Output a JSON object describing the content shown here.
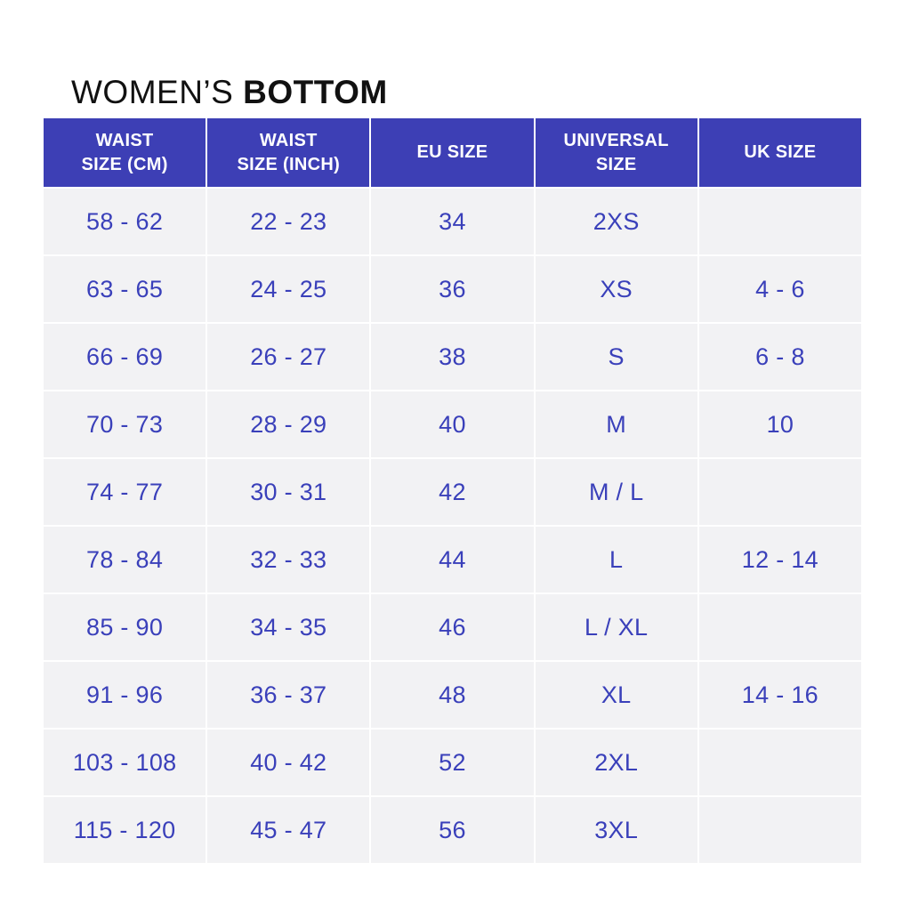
{
  "title": {
    "regular": "WOMEN’S ",
    "bold": "BOTTOM"
  },
  "colors": {
    "header_bg": "#3D3FB5",
    "header_text": "#FFFFFF",
    "cell_bg": "#F2F2F4",
    "cell_text": "#3A40BA",
    "title_text": "#111111",
    "page_bg": "#FFFFFF"
  },
  "table": {
    "headers": [
      "WAIST\nSIZE (CM)",
      "WAIST\nSIZE (INCH)",
      "EU SIZE",
      "UNIVERSAL\nSIZE",
      "UK SIZE"
    ],
    "rows": [
      {
        "cells": [
          "58 - 62",
          "22 - 23",
          "34",
          "2XS",
          ""
        ]
      },
      {
        "cells": [
          "63 - 65",
          "24 - 25",
          "36",
          "XS",
          "4 - 6"
        ]
      },
      {
        "cells": [
          "66 - 69",
          "26 - 27",
          "38",
          "S",
          "6 - 8"
        ]
      },
      {
        "cells": [
          "70 - 73",
          "28 - 29",
          "40",
          "M",
          "10"
        ]
      },
      {
        "cells": [
          "74 - 77",
          "30 - 31",
          "42",
          "M / L",
          ""
        ]
      },
      {
        "cells": [
          "78 - 84",
          "32 - 33",
          "44",
          "L",
          "12 - 14"
        ]
      },
      {
        "cells": [
          "85 - 90",
          "34 - 35",
          "46",
          "L / XL",
          ""
        ]
      },
      {
        "cells": [
          "91 - 96",
          "36 - 37",
          "48",
          "XL",
          "14 - 16"
        ]
      },
      {
        "cells": [
          "103 - 108",
          "40 - 42",
          "52",
          "2XL",
          ""
        ]
      },
      {
        "cells": [
          "115 - 120",
          "45 - 47",
          "56",
          "3XL",
          ""
        ]
      }
    ]
  }
}
